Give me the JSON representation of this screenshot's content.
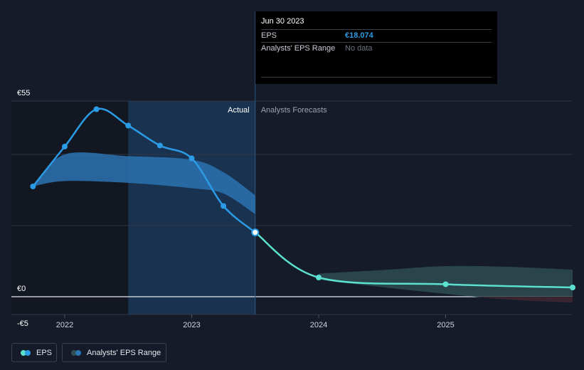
{
  "tooltip": {
    "date": "Jun 30 2023",
    "eps_label": "EPS",
    "eps_value": "€18.074",
    "range_label": "Analysts' EPS Range",
    "range_value": "No data"
  },
  "legend": {
    "eps_label": "EPS",
    "range_label": "Analysts' EPS Range"
  },
  "colors": {
    "background": "#151b28",
    "eps_actual": "#2b9be5",
    "eps_forecast": "#5ce0cf",
    "range_actual": "#2b73b1",
    "range_forecast": "#2e4f52",
    "range_negative": "#3a2430",
    "highlight_band": "#18324f"
  },
  "chart_data": {
    "type": "line",
    "ylim": [
      -5,
      55
    ],
    "y_ticks": [
      {
        "value": 55,
        "label": "€55"
      },
      {
        "value": 0,
        "label": "€0"
      },
      {
        "value": -5,
        "label": "-€5"
      }
    ],
    "y_gridlines": [
      55,
      40,
      20,
      0,
      -5
    ],
    "x_ticks": [
      {
        "value": 2022.0,
        "label": "2022"
      },
      {
        "value": 2023.0,
        "label": "2023"
      },
      {
        "value": 2024.0,
        "label": "2024"
      },
      {
        "value": 2025.0,
        "label": "2025"
      }
    ],
    "xlim": [
      2021.58,
      2026.0
    ],
    "divider_x": 2023.5,
    "highlight_band": [
      2022.5,
      2023.5
    ],
    "section_labels": {
      "actual": "Actual",
      "forecast": "Analysts Forecasts"
    },
    "series": [
      {
        "name": "EPS",
        "style": "actual",
        "points": [
          {
            "x": 2021.75,
            "y": 31.0
          },
          {
            "x": 2022.0,
            "y": 42.2
          },
          {
            "x": 2022.25,
            "y": 52.7
          },
          {
            "x": 2022.5,
            "y": 48.1
          },
          {
            "x": 2022.75,
            "y": 42.5
          },
          {
            "x": 2023.0,
            "y": 38.9
          },
          {
            "x": 2023.25,
            "y": 25.5
          },
          {
            "x": 2023.5,
            "y": 18.07
          }
        ]
      },
      {
        "name": "EPS",
        "style": "forecast",
        "points": [
          {
            "x": 2023.5,
            "y": 18.07
          },
          {
            "x": 2024.0,
            "y": 5.4
          },
          {
            "x": 2025.0,
            "y": 3.5
          },
          {
            "x": 2026.0,
            "y": 2.6
          }
        ],
        "markers_x": [
          2024.0,
          2025.0,
          2026.0
        ]
      }
    ],
    "ranges": [
      {
        "name": "Analysts' EPS Range",
        "style": "actual",
        "x": [
          2021.75,
          2022.0,
          2022.5,
          2023.0,
          2023.25,
          2023.5
        ],
        "high": [
          31.0,
          40.0,
          39.5,
          38.5,
          35.0,
          28.5
        ],
        "low": [
          31.0,
          32.5,
          32.0,
          30.5,
          29.0,
          23.2
        ]
      },
      {
        "name": "Analysts' EPS Range",
        "style": "forecast",
        "x": [
          2024.0,
          2024.5,
          2025.0,
          2025.5,
          2026.0
        ],
        "high": [
          6.5,
          7.5,
          8.6,
          8.4,
          7.6
        ],
        "low": [
          4.8,
          2.7,
          0.8,
          -0.8,
          -1.6
        ]
      }
    ]
  }
}
